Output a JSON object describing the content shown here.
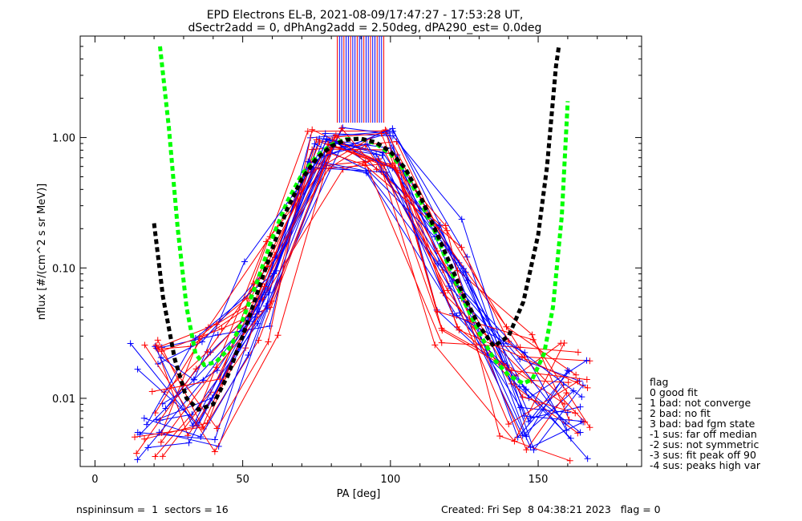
{
  "chart_data": {
    "type": "line",
    "title": "EPD Electrons EL-B, 2021-08-09/17:47:27 - 17:53:28 UT,",
    "subtitle": "dSectr2add = 0, dPhAng2add = 2.50deg, dPA290_est=   0.0deg",
    "xlabel": "PA [deg]",
    "ylabel": "nflux [#/(cm^2 s sr MeV)]",
    "xlim": [
      -5,
      185
    ],
    "ylim": [
      0.003,
      6.0
    ],
    "yscale": "log",
    "x_ticks": [
      0,
      50,
      100,
      150
    ],
    "x_tick_labels": [
      "0",
      "50",
      "100",
      "150"
    ],
    "y_ticks": [
      0.01,
      0.1,
      1.0
    ],
    "y_tick_labels": [
      "0.01",
      "0.10",
      "1.00"
    ],
    "grid": false,
    "fit_curves": [
      {
        "color": "#00ff00",
        "points": [
          [
            22,
            5.0
          ],
          [
            25,
            1.2
          ],
          [
            28,
            0.2
          ],
          [
            31,
            0.05
          ],
          [
            34,
            0.022
          ],
          [
            37,
            0.018
          ],
          [
            41,
            0.019
          ],
          [
            46,
            0.025
          ],
          [
            50,
            0.04
          ],
          [
            55,
            0.08
          ],
          [
            60,
            0.17
          ],
          [
            65,
            0.32
          ],
          [
            70,
            0.52
          ],
          [
            75,
            0.72
          ],
          [
            80,
            0.88
          ],
          [
            85,
            0.97
          ],
          [
            90,
            0.98
          ],
          [
            95,
            0.9
          ],
          [
            100,
            0.75
          ],
          [
            105,
            0.55
          ],
          [
            110,
            0.33
          ],
          [
            115,
            0.19
          ],
          [
            120,
            0.1
          ],
          [
            125,
            0.055
          ],
          [
            130,
            0.032
          ],
          [
            135,
            0.02
          ],
          [
            140,
            0.015
          ],
          [
            145,
            0.013
          ],
          [
            148,
            0.014
          ],
          [
            152,
            0.022
          ],
          [
            155,
            0.05
          ],
          [
            158,
            0.25
          ],
          [
            160,
            1.9
          ]
        ]
      },
      {
        "color": "#000000",
        "points": [
          [
            20,
            0.22
          ],
          [
            23,
            0.06
          ],
          [
            27,
            0.02
          ],
          [
            31,
            0.01
          ],
          [
            35,
            0.0082
          ],
          [
            40,
            0.009
          ],
          [
            45,
            0.015
          ],
          [
            50,
            0.03
          ],
          [
            55,
            0.065
          ],
          [
            60,
            0.14
          ],
          [
            65,
            0.28
          ],
          [
            70,
            0.48
          ],
          [
            75,
            0.69
          ],
          [
            80,
            0.86
          ],
          [
            85,
            0.96
          ],
          [
            90,
            0.98
          ],
          [
            95,
            0.92
          ],
          [
            100,
            0.78
          ],
          [
            105,
            0.58
          ],
          [
            110,
            0.36
          ],
          [
            115,
            0.2
          ],
          [
            120,
            0.11
          ],
          [
            125,
            0.06
          ],
          [
            130,
            0.036
          ],
          [
            135,
            0.025
          ],
          [
            140,
            0.03
          ],
          [
            145,
            0.055
          ],
          [
            150,
            0.18
          ],
          [
            153,
            0.6
          ],
          [
            156,
            3.5
          ],
          [
            157,
            5.0
          ]
        ]
      }
    ],
    "legend_title": "flag",
    "legend": [
      "0 good fit",
      "1 bad: not converge",
      "2 bad: no fit",
      "3 bad: bad fgm state",
      "-1 sus: far off median",
      "-2 sus: not symmetric",
      "-3 sus: fit peak off 90",
      "-4 sus: peaks high var"
    ],
    "colors": {
      "red": "#ff0000",
      "blue": "#0000ff",
      "green": "#00ff00",
      "black": "#000000"
    }
  },
  "footer": {
    "left": "nspininsum =  1  sectors = 16",
    "right": "Created: Fri Sep  8 04:38:21 2023   flag = 0"
  }
}
